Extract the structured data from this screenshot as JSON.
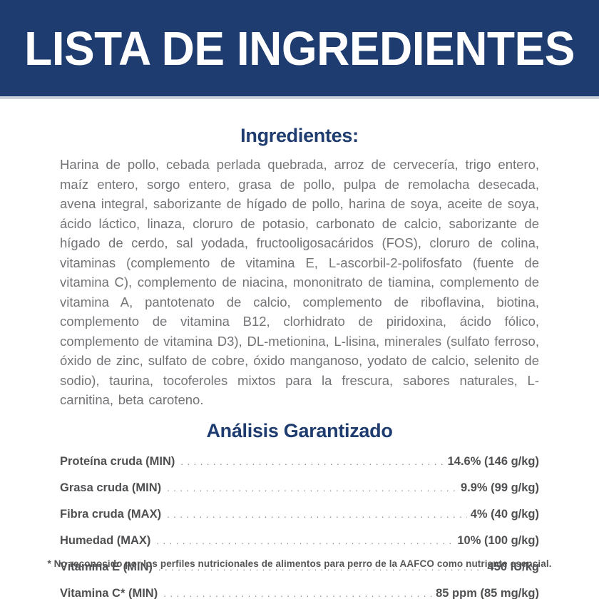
{
  "header": {
    "title": "LISTA DE INGREDIENTES"
  },
  "ingredients": {
    "heading": "Ingredientes:",
    "text": "Harina de pollo, cebada perlada quebrada, arroz de cervecería, trigo entero, maíz entero, sorgo entero, grasa de pollo, pulpa de remolacha desecada, avena integral, saborizante de hígado de pollo, harina de soya, aceite de soya, ácido láctico, linaza, cloruro de potasio, carbonato de calcio, saborizante de hígado de cerdo, sal yodada, fructooligosacáridos (FOS), cloruro de colina, vitaminas (complemento de vitamina E, L-ascorbil-2-polifosfato (fuente de vitamina C), complemento de niacina, mononitrato de tiamina, complemento de vitamina A, pantotenato de calcio, complemento de riboflavina, biotina, complemento de vitamina B12, clorhidrato de piridoxina, ácido fólico, complemento de vitamina D3), DL-metionina, L-lisina, minerales (sulfato ferroso, óxido de zinc, sulfato de cobre, óxido manganoso, yodato de calcio, selenito de sodio), taurina, tocoferoles mixtos para la frescura, sabores naturales, L-carnitina, beta caroteno."
  },
  "analysis": {
    "heading": "Análisis Garantizado",
    "rows": [
      {
        "label": "Proteína cruda (MIN)",
        "value": "14.6% (146 g/kg)"
      },
      {
        "label": "Grasa cruda (MIN)",
        "value": "9.9% (99 g/kg)"
      },
      {
        "label": "Fibra cruda (MAX)",
        "value": "4% (40 g/kg)"
      },
      {
        "label": "Humedad (MAX)",
        "value": "10% (100 g/kg)"
      },
      {
        "label": "Vitamina E (MIN)",
        "value": "450 IU/kg"
      },
      {
        "label": "Vitamina C* (MIN)",
        "value": "85 ppm (85 mg/kg)"
      }
    ]
  },
  "footnote": "* No reconocido por los perfiles nutricionales de alimentos para perro de la AAFCO como nutriente esencial.",
  "colors": {
    "brand_navy": "#1e3c6f",
    "body_gray": "#737477",
    "table_gray": "#4f5052",
    "header_text": "#ffffff"
  }
}
